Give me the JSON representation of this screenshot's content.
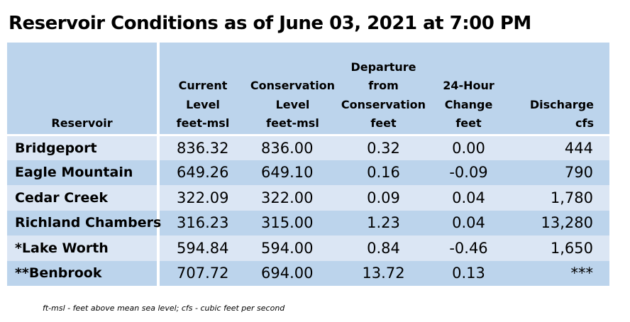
{
  "title": "Reservoir Conditions as of June 03, 2021 at 7:00 PM",
  "columns": [
    {
      "lines": [
        "Reservoir"
      ]
    },
    {
      "lines": [
        "Current",
        "Level",
        "feet-msl"
      ]
    },
    {
      "lines": [
        "Conservation",
        "Level",
        "feet-msl"
      ]
    },
    {
      "lines": [
        "Departure",
        "from",
        "Conservation",
        "feet"
      ]
    },
    {
      "lines": [
        "24-Hour",
        "Change",
        "feet"
      ]
    },
    {
      "lines": [
        "Discharge",
        "cfs"
      ]
    }
  ],
  "rows": [
    {
      "name": "Bridgeport",
      "current": "836.32",
      "conservation": "836.00",
      "departure": "0.32",
      "change": "0.00",
      "discharge": "444"
    },
    {
      "name": "Eagle Mountain",
      "current": "649.26",
      "conservation": "649.10",
      "departure": "0.16",
      "change": "-0.09",
      "discharge": "790"
    },
    {
      "name": "Cedar Creek",
      "current": "322.09",
      "conservation": "322.00",
      "departure": "0.09",
      "change": "0.04",
      "discharge": "1,780"
    },
    {
      "name": "Richland Chambers",
      "current": "316.23",
      "conservation": "315.00",
      "departure": "1.23",
      "change": "0.04",
      "discharge": "13,280"
    },
    {
      "name": "*Lake Worth",
      "current": "594.84",
      "conservation": "594.00",
      "departure": "0.84",
      "change": "-0.46",
      "discharge": "1,650"
    },
    {
      "name": "**Benbrook",
      "current": "707.72",
      "conservation": "694.00",
      "departure": "13.72",
      "change": "0.13",
      "discharge": "***"
    }
  ],
  "footnote": "ft-msl - feet above mean sea level; cfs - cubic feet per second",
  "colors": {
    "header_bg": "#bcd4ec",
    "row_light": "#dbe6f4",
    "row_dark": "#bcd4ec"
  }
}
